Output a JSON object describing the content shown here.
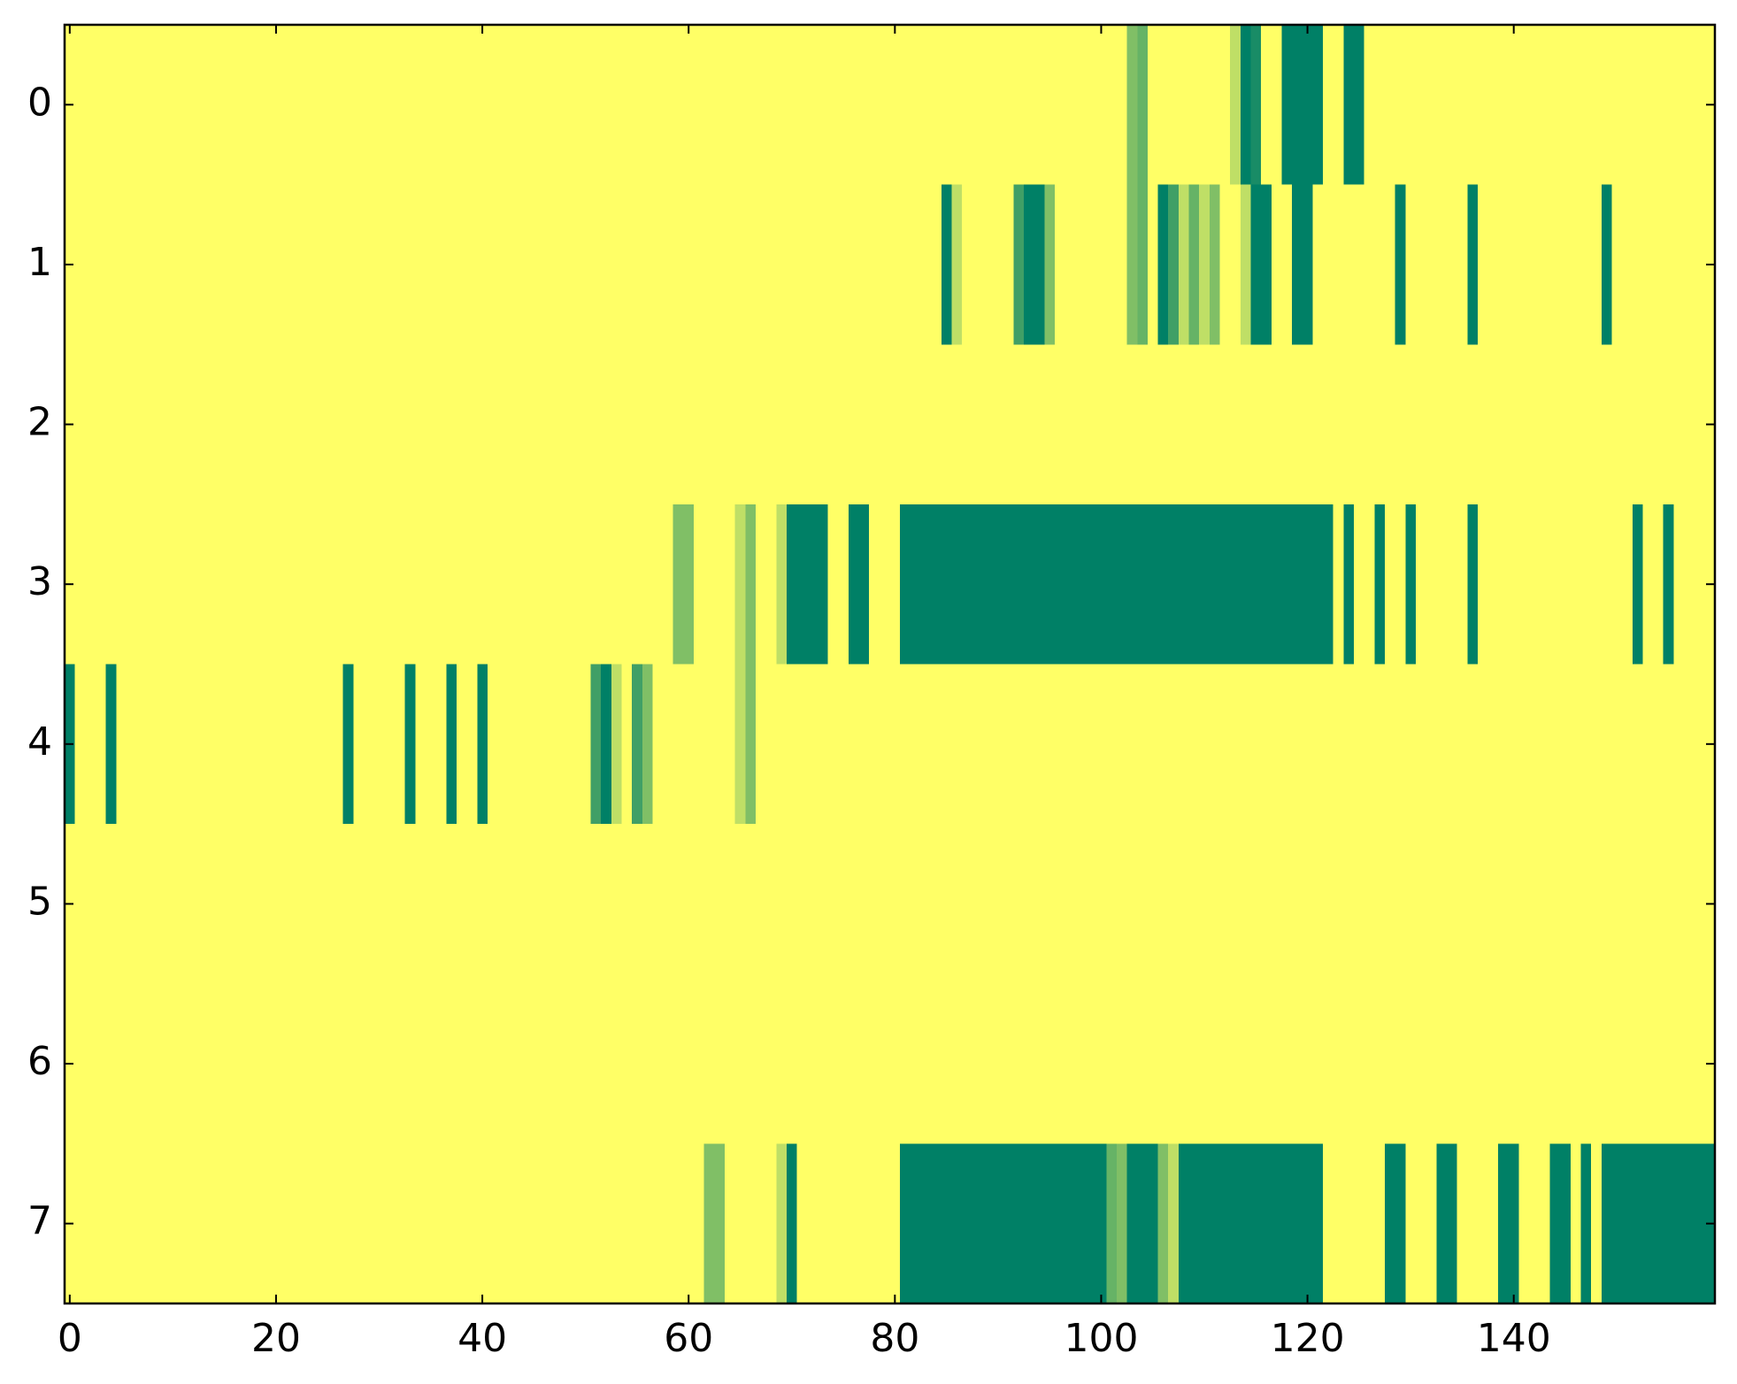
{
  "chart_data": {
    "type": "heatmap",
    "colormap": "summer_r",
    "clim": [
      0,
      1
    ],
    "xlim": [
      -0.5,
      159.5
    ],
    "ylim": [
      7.5,
      -0.5
    ],
    "xticks": [
      0,
      20,
      40,
      60,
      80,
      100,
      120,
      140
    ],
    "yticks": [
      0,
      1,
      2,
      3,
      4,
      5,
      6,
      7
    ],
    "z": [
      [
        0,
        0,
        0,
        0,
        0,
        0,
        0,
        0,
        0,
        0,
        0,
        0,
        0,
        0,
        0,
        0,
        0,
        0,
        0,
        0,
        0,
        0,
        0,
        0,
        0,
        0,
        0,
        0,
        0,
        0,
        0,
        0,
        0,
        0,
        0,
        0,
        0,
        0,
        0,
        0,
        0,
        0,
        0,
        0,
        0,
        0,
        0,
        0,
        0,
        0,
        0,
        0,
        0,
        0,
        0,
        0,
        0,
        0,
        0,
        0,
        0,
        0,
        0,
        0,
        0,
        0,
        0,
        0,
        0,
        0,
        0,
        0,
        0,
        0,
        0,
        0,
        0,
        0,
        0,
        0,
        0,
        0,
        0,
        0,
        0,
        0,
        0,
        0,
        0,
        0,
        0,
        0,
        0,
        0,
        0,
        0,
        0,
        0,
        0,
        0,
        0,
        0,
        0,
        0.5,
        0.6,
        0,
        0,
        0,
        0,
        0,
        0,
        0,
        0,
        0.25,
        1,
        0.9,
        0,
        0,
        1,
        1,
        1,
        1,
        0,
        0,
        1,
        1,
        0,
        0,
        0,
        0,
        0,
        0,
        0,
        0,
        0,
        0,
        0,
        0,
        0,
        0,
        0,
        0,
        0,
        0,
        0,
        0,
        0,
        0,
        0,
        0,
        0,
        0,
        0,
        0,
        0,
        0,
        0,
        0,
        0,
        0
      ],
      [
        0,
        0,
        0,
        0,
        0,
        0,
        0,
        0,
        0,
        0,
        0,
        0,
        0,
        0,
        0,
        0,
        0,
        0,
        0,
        0,
        0,
        0,
        0,
        0,
        0,
        0,
        0,
        0,
        0,
        0,
        0,
        0,
        0,
        0,
        0,
        0,
        0,
        0,
        0,
        0,
        0,
        0,
        0,
        0,
        0,
        0,
        0,
        0,
        0,
        0,
        0,
        0,
        0,
        0,
        0,
        0,
        0,
        0,
        0,
        0,
        0,
        0,
        0,
        0,
        0,
        0,
        0,
        0,
        0,
        0,
        0,
        0,
        0,
        0,
        0,
        0,
        0,
        0,
        0,
        0,
        0,
        0,
        0,
        0,
        0,
        1,
        0.25,
        0,
        0,
        0,
        0,
        0,
        0.75,
        1,
        1,
        0.5,
        0,
        0,
        0,
        0,
        0,
        0,
        0,
        0.5,
        0.6,
        0,
        1,
        0.75,
        0.25,
        0.6,
        0.25,
        0.5,
        0,
        0,
        0.25,
        1,
        1,
        0,
        0,
        1,
        1,
        0,
        0,
        0,
        0,
        0,
        0,
        0,
        0,
        1,
        0,
        0,
        0,
        0,
        0,
        0,
        1,
        0,
        0,
        0,
        0,
        0,
        0,
        0,
        0,
        0,
        0,
        0,
        0,
        1,
        0,
        0,
        0,
        0,
        0,
        0,
        0,
        0,
        0,
        0
      ],
      [
        0,
        0,
        0,
        0,
        0,
        0,
        0,
        0,
        0,
        0,
        0,
        0,
        0,
        0,
        0,
        0,
        0,
        0,
        0,
        0,
        0,
        0,
        0,
        0,
        0,
        0,
        0,
        0,
        0,
        0,
        0,
        0,
        0,
        0,
        0,
        0,
        0,
        0,
        0,
        0,
        0,
        0,
        0,
        0,
        0,
        0,
        0,
        0,
        0,
        0,
        0,
        0,
        0,
        0,
        0,
        0,
        0,
        0,
        0,
        0,
        0,
        0,
        0,
        0,
        0,
        0,
        0,
        0,
        0,
        0,
        0,
        0,
        0,
        0,
        0,
        0,
        0,
        0,
        0,
        0,
        0,
        0,
        0,
        0,
        0,
        0,
        0,
        0,
        0,
        0,
        0,
        0,
        0,
        0,
        0,
        0,
        0,
        0,
        0,
        0,
        0,
        0,
        0,
        0,
        0,
        0,
        0,
        0,
        0,
        0,
        0,
        0,
        0,
        0,
        0,
        0,
        0,
        0,
        0,
        0,
        0,
        0,
        0,
        0,
        0,
        0,
        0,
        0,
        0,
        0,
        0,
        0,
        0,
        0,
        0,
        0,
        0,
        0,
        0,
        0,
        0,
        0,
        0,
        0,
        0,
        0,
        0,
        0,
        0,
        0,
        0,
        0,
        0,
        0,
        0,
        0,
        0,
        0,
        0,
        0
      ],
      [
        0,
        0,
        0,
        0,
        0,
        0,
        0,
        0,
        0,
        0,
        0,
        0,
        0,
        0,
        0,
        0,
        0,
        0,
        0,
        0,
        0,
        0,
        0,
        0,
        0,
        0,
        0,
        0,
        0,
        0,
        0,
        0,
        0,
        0,
        0,
        0,
        0,
        0,
        0,
        0,
        0,
        0,
        0,
        0,
        0,
        0,
        0,
        0,
        0,
        0,
        0,
        0,
        0,
        0,
        0,
        0,
        0,
        0,
        0,
        0.5,
        0.5,
        0,
        0,
        0,
        0,
        0.25,
        0.5,
        0,
        0,
        0.25,
        1,
        1,
        1,
        1,
        0,
        0,
        1,
        1,
        0,
        0,
        0,
        1,
        1,
        1,
        1,
        1,
        1,
        1,
        1,
        1,
        1,
        1,
        1,
        1,
        1,
        1,
        1,
        1,
        1,
        1,
        1,
        1,
        1,
        1,
        1,
        1,
        1,
        1,
        1,
        1,
        1,
        1,
        1,
        1,
        1,
        1,
        1,
        1,
        1,
        1,
        1,
        1,
        1,
        0,
        1,
        0,
        0,
        1,
        0,
        0,
        1,
        0,
        0,
        0,
        0,
        0,
        1,
        0,
        0,
        0,
        0,
        0,
        0,
        0,
        0,
        0,
        0,
        0,
        0,
        0,
        0,
        0,
        1,
        0,
        0,
        1,
        0,
        0,
        0,
        0
      ],
      [
        1,
        0,
        0,
        0,
        1,
        0,
        0,
        0,
        0,
        0,
        0,
        0,
        0,
        0,
        0,
        0,
        0,
        0,
        0,
        0,
        0,
        0,
        0,
        0,
        0,
        0,
        0,
        1,
        0,
        0,
        0,
        0,
        0,
        1,
        0,
        0,
        0,
        1,
        0,
        0,
        1,
        0,
        0,
        0,
        0,
        0,
        0,
        0,
        0,
        0,
        0,
        0.75,
        1,
        0.25,
        0,
        0.75,
        0.5,
        0,
        0,
        0,
        0,
        0,
        0,
        0,
        0,
        0.25,
        0.5,
        0,
        0,
        0,
        0,
        0,
        0,
        0,
        0,
        0,
        0,
        0,
        0,
        0,
        0,
        0,
        0,
        0,
        0,
        0,
        0,
        0,
        0,
        0,
        0,
        0,
        0,
        0,
        0,
        0,
        0,
        0,
        0,
        0,
        0,
        0,
        0,
        0,
        0,
        0,
        0,
        0,
        0,
        0,
        0,
        0,
        0,
        0,
        0,
        0,
        0,
        0,
        0,
        0,
        0,
        0,
        0,
        0,
        0,
        0,
        0,
        0,
        0,
        0,
        0,
        0,
        0,
        0,
        0,
        0,
        0,
        0,
        0,
        0,
        0,
        0,
        0,
        0,
        0,
        0,
        0,
        0,
        0,
        0,
        0,
        0,
        0,
        0,
        0,
        0,
        0,
        0,
        0,
        0
      ],
      [
        0,
        0,
        0,
        0,
        0,
        0,
        0,
        0,
        0,
        0,
        0,
        0,
        0,
        0,
        0,
        0,
        0,
        0,
        0,
        0,
        0,
        0,
        0,
        0,
        0,
        0,
        0,
        0,
        0,
        0,
        0,
        0,
        0,
        0,
        0,
        0,
        0,
        0,
        0,
        0,
        0,
        0,
        0,
        0,
        0,
        0,
        0,
        0,
        0,
        0,
        0,
        0,
        0,
        0,
        0,
        0,
        0,
        0,
        0,
        0,
        0,
        0,
        0,
        0,
        0,
        0,
        0,
        0,
        0,
        0,
        0,
        0,
        0,
        0,
        0,
        0,
        0,
        0,
        0,
        0,
        0,
        0,
        0,
        0,
        0,
        0,
        0,
        0,
        0,
        0,
        0,
        0,
        0,
        0,
        0,
        0,
        0,
        0,
        0,
        0,
        0,
        0,
        0,
        0,
        0,
        0,
        0,
        0,
        0,
        0,
        0,
        0,
        0,
        0,
        0,
        0,
        0,
        0,
        0,
        0,
        0,
        0,
        0,
        0,
        0,
        0,
        0,
        0,
        0,
        0,
        0,
        0,
        0,
        0,
        0,
        0,
        0,
        0,
        0,
        0,
        0,
        0,
        0,
        0,
        0,
        0,
        0,
        0,
        0,
        0,
        0,
        0,
        0,
        0,
        0,
        0,
        0,
        0,
        0,
        0
      ],
      [
        0,
        0,
        0,
        0,
        0,
        0,
        0,
        0,
        0,
        0,
        0,
        0,
        0,
        0,
        0,
        0,
        0,
        0,
        0,
        0,
        0,
        0,
        0,
        0,
        0,
        0,
        0,
        0,
        0,
        0,
        0,
        0,
        0,
        0,
        0,
        0,
        0,
        0,
        0,
        0,
        0,
        0,
        0,
        0,
        0,
        0,
        0,
        0,
        0,
        0,
        0,
        0,
        0,
        0,
        0,
        0,
        0,
        0,
        0,
        0,
        0,
        0,
        0,
        0,
        0,
        0,
        0,
        0,
        0,
        0,
        0,
        0,
        0,
        0,
        0,
        0,
        0,
        0,
        0,
        0,
        0,
        0,
        0,
        0,
        0,
        0,
        0,
        0,
        0,
        0,
        0,
        0,
        0,
        0,
        0,
        0,
        0,
        0,
        0,
        0,
        0,
        0,
        0,
        0,
        0,
        0,
        0,
        0,
        0,
        0,
        0,
        0,
        0,
        0,
        0,
        0,
        0,
        0,
        0,
        0,
        0,
        0,
        0,
        0,
        0,
        0,
        0,
        0,
        0,
        0,
        0,
        0,
        0,
        0,
        0,
        0,
        0,
        0,
        0,
        0,
        0,
        0,
        0,
        0,
        0,
        0,
        0,
        0,
        0,
        0,
        0,
        0,
        0,
        0,
        0,
        0,
        0,
        0,
        0,
        0
      ],
      [
        0,
        0,
        0,
        0,
        0,
        0,
        0,
        0,
        0,
        0,
        0,
        0,
        0,
        0,
        0,
        0,
        0,
        0,
        0,
        0,
        0,
        0,
        0,
        0,
        0,
        0,
        0,
        0,
        0,
        0,
        0,
        0,
        0,
        0,
        0,
        0,
        0,
        0,
        0,
        0,
        0,
        0,
        0,
        0,
        0,
        0,
        0,
        0,
        0,
        0,
        0,
        0,
        0,
        0,
        0,
        0,
        0,
        0,
        0,
        0,
        0,
        0,
        0.5,
        0.5,
        0,
        0,
        0,
        0,
        0,
        0.25,
        1,
        0,
        0,
        0,
        0,
        0,
        0,
        0,
        0,
        0,
        0,
        1,
        1,
        1,
        1,
        1,
        1,
        1,
        1,
        1,
        1,
        1,
        1,
        1,
        1,
        1,
        1,
        1,
        1,
        1,
        1,
        0.6,
        0.5,
        1,
        1,
        1,
        0.5,
        0.25,
        1,
        1,
        1,
        1,
        1,
        1,
        1,
        1,
        1,
        1,
        1,
        1,
        1,
        1,
        0,
        0,
        0,
        0,
        0,
        0,
        1,
        1,
        0,
        0,
        0,
        1,
        1,
        0,
        0,
        0,
        0,
        1,
        1,
        0,
        0,
        0,
        1,
        1,
        0,
        1,
        0,
        1,
        1,
        1,
        1,
        1,
        1,
        1,
        1,
        1,
        1,
        1
      ]
    ]
  }
}
